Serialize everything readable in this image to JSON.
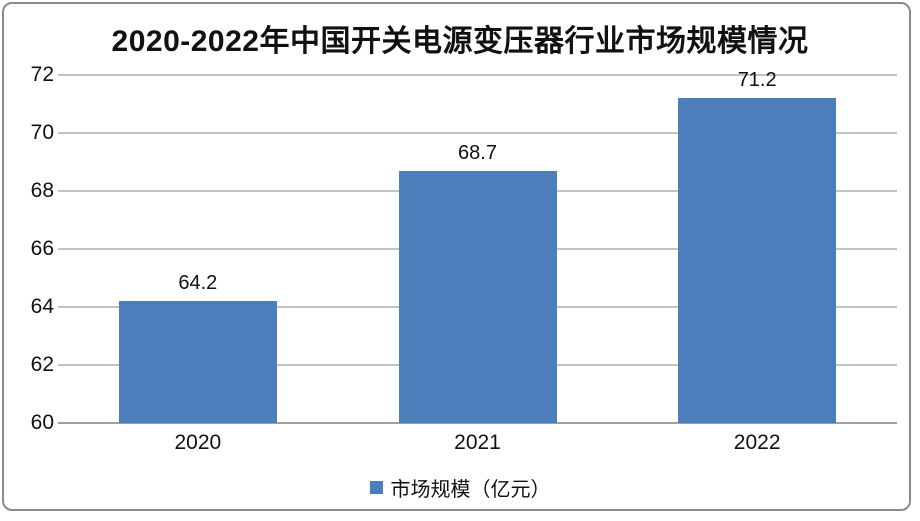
{
  "chart_data": {
    "type": "bar",
    "title": "2020-2022年中国开关电源变压器行业市场规模情况",
    "categories": [
      "2020",
      "2021",
      "2022"
    ],
    "values": [
      64.2,
      68.7,
      71.2
    ],
    "data_labels": [
      "64.2",
      "68.7",
      "71.2"
    ],
    "yticks": [
      60,
      62,
      64,
      66,
      68,
      70,
      72
    ],
    "ylim": [
      60,
      72
    ],
    "xlabel": "",
    "ylabel": "",
    "grid": true,
    "legend": "市场规模（亿元）",
    "legend_position": "bottom"
  },
  "colors": {
    "bar": "#4d7ebc",
    "gridline": "#c3c3c3",
    "axis_line": "#a0a0a0",
    "frame_border": "#8a8a8a",
    "text": "#111111",
    "background": "#ffffff"
  }
}
